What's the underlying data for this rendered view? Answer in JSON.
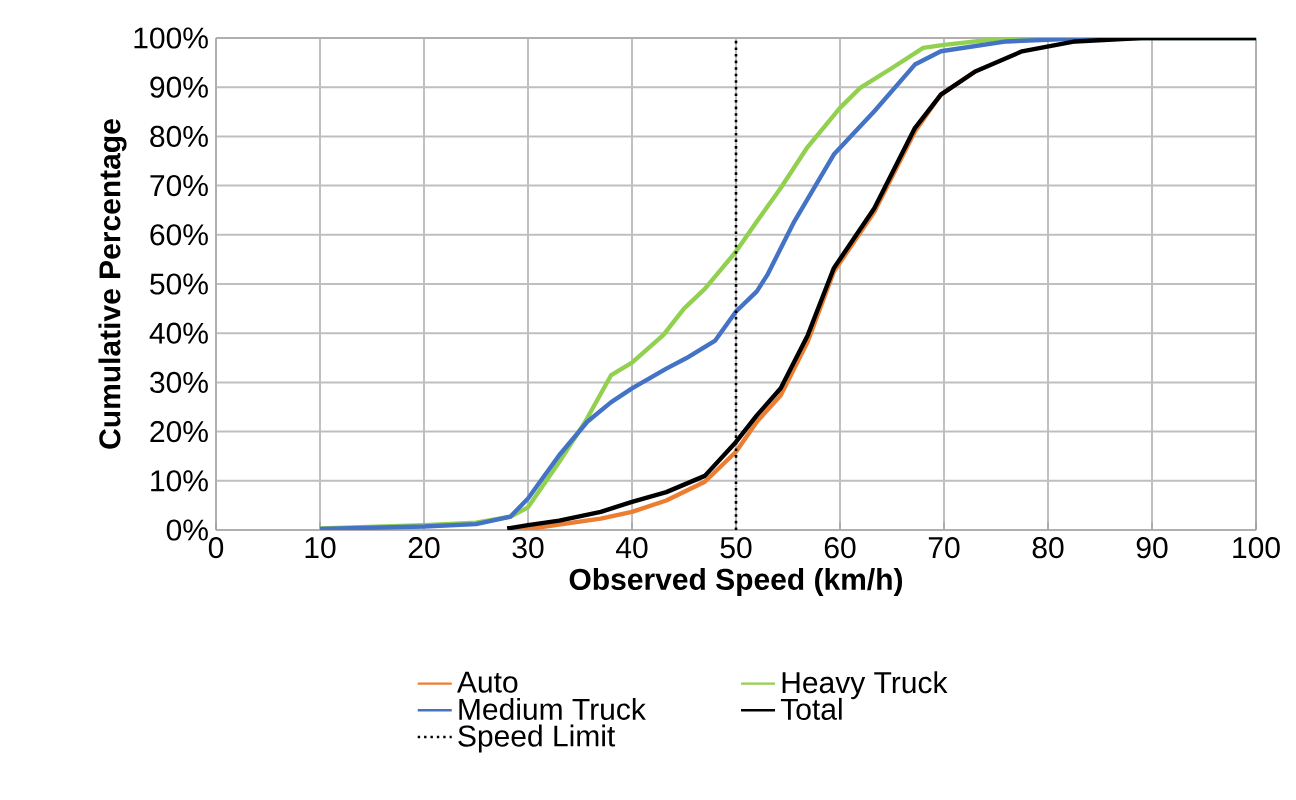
{
  "chart_data": {
    "type": "line",
    "xlabel": "Observed Speed (km/h)",
    "ylabel": "Cumulative Percentage",
    "xlim": [
      0,
      100
    ],
    "xticks": [
      0,
      10,
      20,
      30,
      40,
      50,
      60,
      70,
      80,
      90,
      100
    ],
    "ylim": [
      0,
      100
    ],
    "yticks": [
      {
        "value": 0,
        "label": "0%"
      },
      {
        "value": 10,
        "label": "10%"
      },
      {
        "value": 20,
        "label": "20%"
      },
      {
        "value": 30,
        "label": "30%"
      },
      {
        "value": 40,
        "label": "40%"
      },
      {
        "value": 50,
        "label": "50%"
      },
      {
        "value": 60,
        "label": "60%"
      },
      {
        "value": 70,
        "label": "70%"
      },
      {
        "value": 80,
        "label": "80%"
      },
      {
        "value": 90,
        "label": "90%"
      },
      {
        "value": 100,
        "label": "100%"
      }
    ],
    "grid": true,
    "legend": "bottom",
    "marker": "none",
    "line_style": "solid",
    "series": [
      {
        "name": "Auto",
        "color": "#ed7d31",
        "x": [
          28,
          30,
          37,
          40,
          43.3,
          47,
          50,
          52,
          54.3,
          56.9,
          59.4,
          63.3,
          67.2,
          69.7,
          73
        ],
        "values": [
          0,
          0.2,
          2.3,
          3.7,
          6,
          9.8,
          15.9,
          22,
          27.4,
          38.3,
          52.5,
          64.7,
          81,
          88.5,
          93.2
        ]
      },
      {
        "name": "Heavy Truck",
        "color": "#92d050",
        "x": [
          10,
          20,
          25,
          28.3,
          30,
          33,
          35.5,
          38,
          40,
          43,
          45,
          47,
          50,
          52,
          54.3,
          56.8,
          60,
          61.9,
          65,
          68,
          70,
          76,
          100
        ],
        "values": [
          0.3,
          1,
          1.5,
          2.7,
          4.6,
          13.8,
          22,
          31.5,
          34,
          39.6,
          45,
          49,
          56.6,
          62.7,
          69.5,
          77.6,
          85.8,
          89.8,
          93.9,
          98,
          98.6,
          100,
          100
        ]
      },
      {
        "name": "Medium Truck",
        "color": "#4472c4",
        "x": [
          10,
          20,
          25,
          28.3,
          30,
          33,
          35.7,
          38,
          40,
          43.3,
          45.2,
          48,
          50,
          52,
          53,
          55.6,
          59.4,
          63.3,
          67.2,
          69.7,
          76,
          84,
          100
        ],
        "values": [
          0.2,
          0.7,
          1.2,
          2.7,
          6.4,
          15.2,
          22,
          26,
          28.8,
          32.8,
          34.9,
          38.5,
          44.4,
          48.5,
          51.8,
          62.7,
          76.3,
          85.1,
          94.6,
          97.3,
          99.3,
          100,
          100
        ]
      },
      {
        "name": "Total",
        "color": "#000000",
        "x": [
          28,
          30,
          33,
          37,
          40,
          43.3,
          47,
          50,
          52,
          54.3,
          56.9,
          59.4,
          63.3,
          67.2,
          69.7,
          73,
          77.5,
          82.6,
          89,
          100
        ],
        "values": [
          0.3,
          1,
          1.9,
          3.7,
          5.7,
          7.7,
          11,
          17.9,
          23.3,
          28.8,
          39.6,
          53.2,
          65.4,
          81.7,
          88.5,
          93.2,
          97.3,
          99.3,
          100,
          100
        ]
      }
    ],
    "ref_lines": [
      {
        "axis": "x",
        "value": 50,
        "label": "Speed Limit",
        "color": "#000000",
        "line_style": "dotted"
      }
    ]
  }
}
